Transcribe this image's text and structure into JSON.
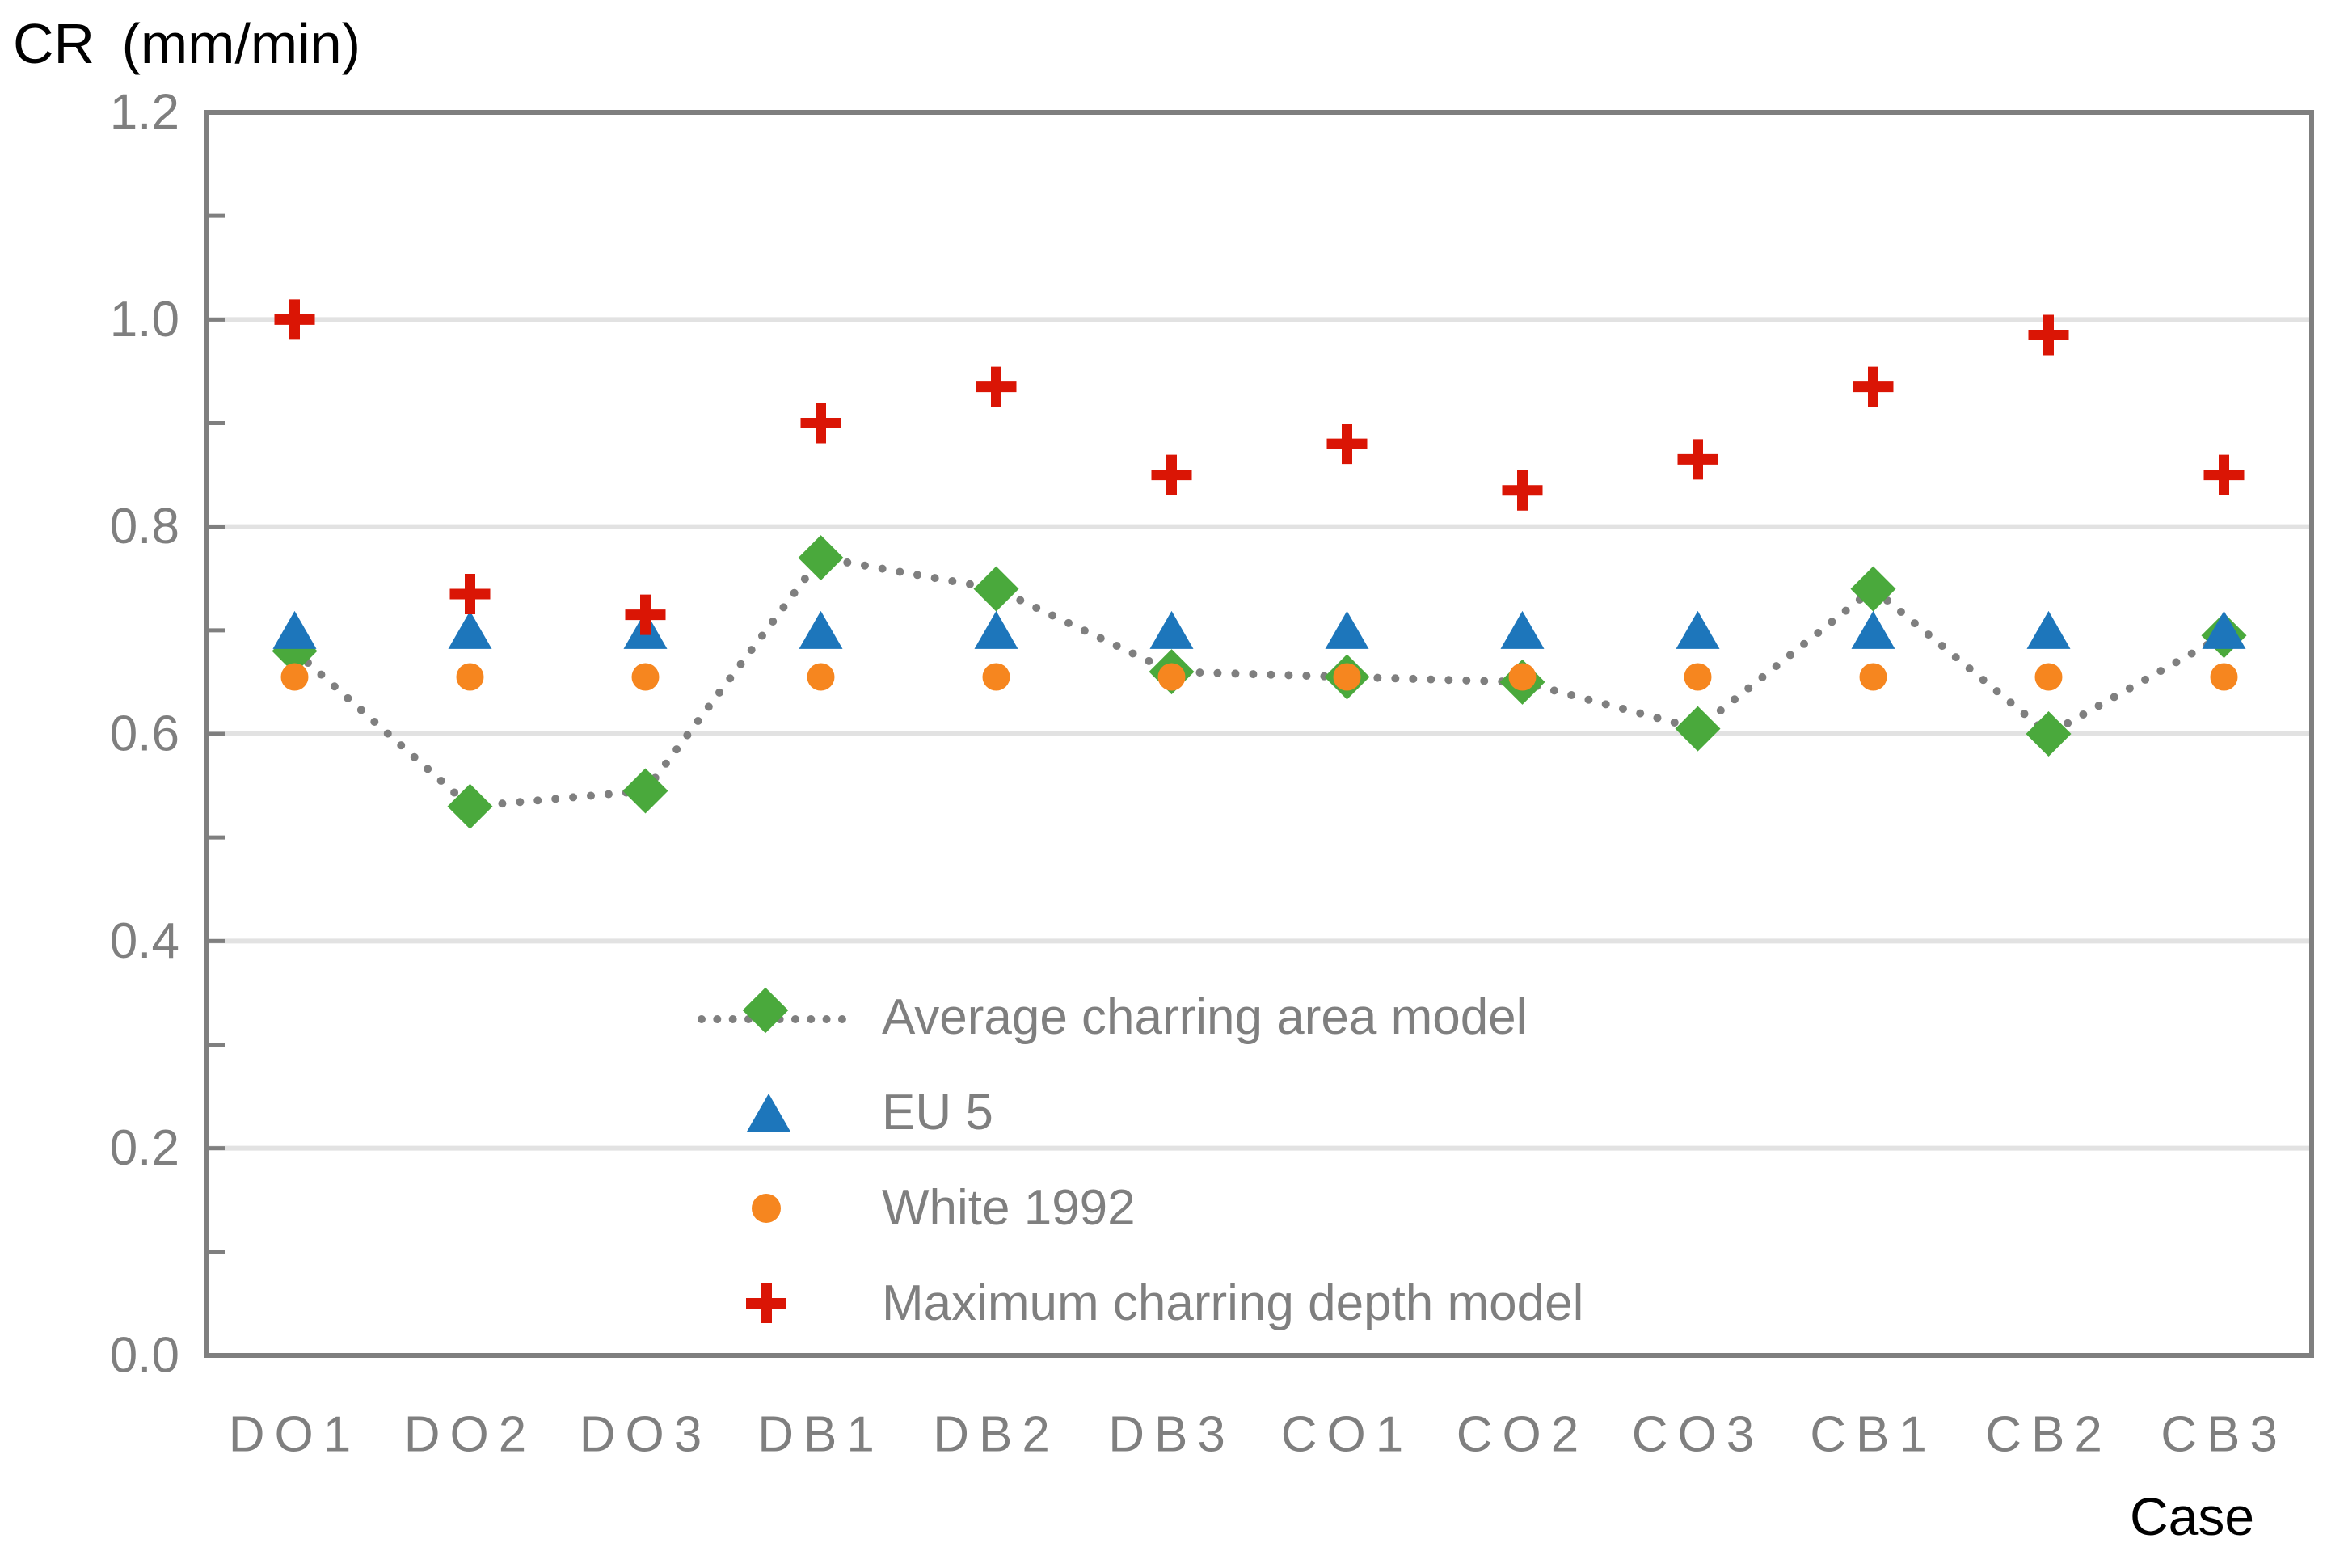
{
  "chart_data": {
    "type": "scatter",
    "title": "CR (mm/min)",
    "xlabel": "Case",
    "categories": [
      "DO1",
      "DO2",
      "DO3",
      "DB1",
      "DB2",
      "DB3",
      "CO1",
      "CO2",
      "CO3",
      "CB1",
      "CB2",
      "CB3"
    ],
    "y_axis": {
      "min": 0.0,
      "max": 1.2,
      "major_tick_step": 0.2,
      "minor_tick_step": 0.1,
      "tick_labels": [
        "0.0",
        "0.2",
        "0.4",
        "0.6",
        "0.8",
        "1.0",
        "1.2"
      ]
    },
    "grid": {
      "horizontal": true,
      "interval": 0.2
    },
    "legend_position": "inside-lower-center",
    "series": [
      {
        "name": "Average charring area model",
        "marker": "diamond",
        "color": "#4aa93c",
        "line": "dotted",
        "line_color": "#7f7f7f",
        "values": [
          0.68,
          0.53,
          0.545,
          0.77,
          0.74,
          0.66,
          0.655,
          0.65,
          0.605,
          0.74,
          0.6,
          0.695
        ]
      },
      {
        "name": "EU 5",
        "marker": "triangle",
        "color": "#1d76bb",
        "line": "none",
        "values": [
          0.7,
          0.7,
          0.7,
          0.7,
          0.7,
          0.7,
          0.7,
          0.7,
          0.7,
          0.7,
          0.7,
          0.7
        ]
      },
      {
        "name": "White 1992",
        "marker": "circle",
        "color": "#f6861f",
        "line": "none",
        "values": [
          0.655,
          0.655,
          0.655,
          0.655,
          0.655,
          0.655,
          0.655,
          0.655,
          0.655,
          0.655,
          0.655,
          0.655
        ]
      },
      {
        "name": "Maximum charring depth model",
        "marker": "plus",
        "color": "#da1505",
        "line": "none",
        "values": [
          1.0,
          0.735,
          0.715,
          0.9,
          0.935,
          0.85,
          0.88,
          0.835,
          0.865,
          0.935,
          0.985,
          0.85
        ]
      }
    ],
    "style": {
      "axis_color": "#7f7f7f",
      "grid_color": "#e2e2e2",
      "tick_label_color": "#7f7f7f",
      "title_color": "#000000",
      "xlabel_color": "#000000"
    }
  }
}
